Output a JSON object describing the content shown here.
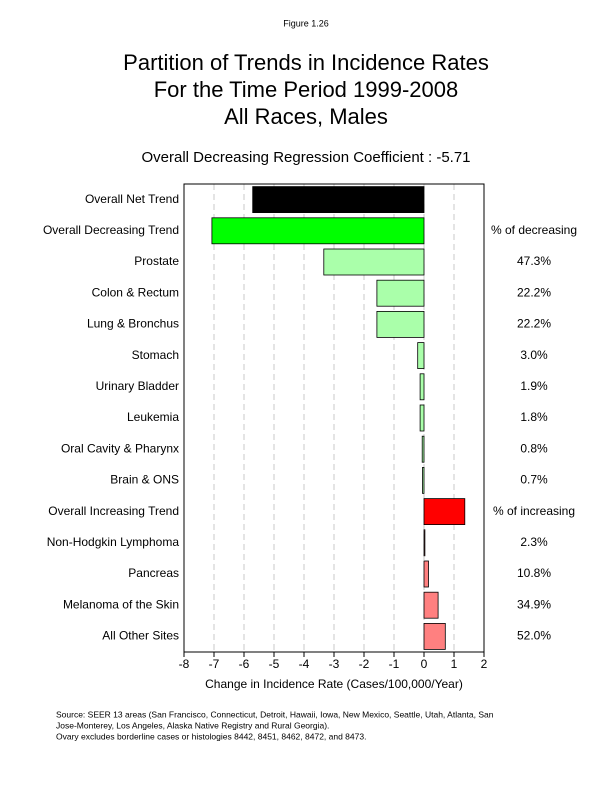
{
  "figure_label": "Figure 1.26",
  "chart_data": {
    "type": "hbar",
    "title": [
      "Partition of Trends in Incidence Rates",
      "For the Time Period 1999-2008",
      "All Races, Males"
    ],
    "subtitle": "Overall Decreasing Regression Coefficient : -5.71",
    "x_label": "Change in Incidence Rate (Cases/100,000/Year)",
    "categories": [
      "Overall Net Trend",
      "Overall Decreasing Trend",
      "Prostate",
      "Colon & Rectum",
      "Lung & Bronchus",
      "Stomach",
      "Urinary Bladder",
      "Leukemia",
      "Oral Cavity & Pharynx",
      "Brain & ONS",
      "Overall Increasing Trend",
      "Non-Hodgkin Lymphoma",
      "Pancreas",
      "Melanoma of the Skin",
      "All Other Sites"
    ],
    "values": [
      -5.71,
      -7.07,
      -3.34,
      -1.57,
      -1.57,
      -0.21,
      -0.13,
      -0.13,
      -0.06,
      -0.05,
      1.36,
      0.03,
      0.15,
      0.47,
      0.71
    ],
    "colors": [
      "#000000",
      "#00ff00",
      "#aaffaa",
      "#aaffaa",
      "#aaffaa",
      "#aaffaa",
      "#aaffaa",
      "#aaffaa",
      "#aaffaa",
      "#aaffaa",
      "#ff0000",
      "#ff8080",
      "#ff8080",
      "#ff8080",
      "#ff8080"
    ],
    "share_labels": [
      null,
      "% of decreasing",
      "47.3%",
      "22.2%",
      "22.2%",
      "3.0%",
      "1.9%",
      "1.8%",
      "0.8%",
      "0.7%",
      "% of increasing",
      "2.3%",
      "10.8%",
      "34.9%",
      "52.0%"
    ],
    "xlim": [
      -8,
      2
    ],
    "xticks": [
      -8,
      -7,
      -6,
      -5,
      -4,
      -3,
      -2,
      -1,
      0,
      1,
      2
    ],
    "grid": true
  },
  "source": [
    "Source:  SEER 13 areas (San Francisco, Connecticut, Detroit, Hawaii, Iowa, New Mexico, Seattle, Utah, Atlanta, San",
    "Jose-Monterey, Los Angeles, Alaska Native Registry and Rural Georgia).",
    "Ovary excludes borderline cases or histologies 8442, 8451, 8462, 8472, and 8473."
  ]
}
